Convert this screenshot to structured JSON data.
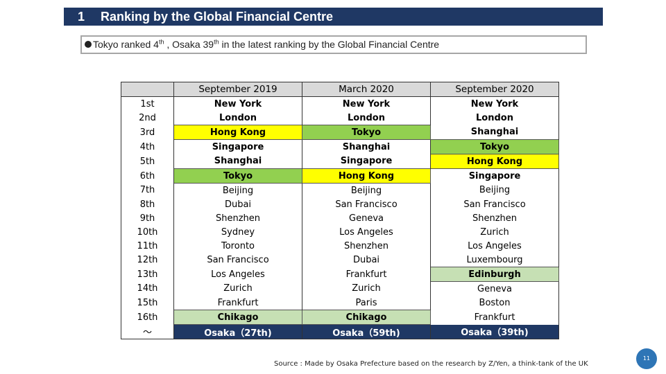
{
  "header": {
    "number": "1",
    "title": "Ranking by the Global Financial Centre"
  },
  "subtitle": {
    "parts": [
      "Tokyo ranked  4",
      "th",
      " , Osaka 39",
      "th",
      " in the latest ranking by the Global Financial Centre"
    ]
  },
  "table": {
    "columns": [
      "",
      "September 2019",
      "March 2020",
      "September 2020"
    ],
    "rows": [
      [
        "1st",
        "New York",
        "New York",
        "New York"
      ],
      [
        "2nd",
        "London",
        "London",
        "London"
      ],
      [
        "3rd",
        "Hong Kong",
        "Tokyo",
        "Shanghai"
      ],
      [
        "4th",
        "Singapore",
        "Shanghai",
        "Tokyo"
      ],
      [
        "5th",
        "Shanghai",
        "Singapore",
        "Hong Kong"
      ],
      [
        "6th",
        "Tokyo",
        "Hong Kong",
        "Singapore"
      ],
      [
        "7th",
        "Beijing",
        "Beijing",
        "Beijing"
      ],
      [
        "8th",
        "Dubai",
        "San Francisco",
        "San Francisco"
      ],
      [
        "9th",
        "Shenzhen",
        "Geneva",
        "Shenzhen"
      ],
      [
        "10th",
        "Sydney",
        "Los Angeles",
        "Zurich"
      ],
      [
        "11th",
        "Toronto",
        "Shenzhen",
        "Los Angeles"
      ],
      [
        "12th",
        "San Francisco",
        "Dubai",
        "Luxembourg"
      ],
      [
        "13th",
        "Los Angeles",
        "Frankfurt",
        "Edinburgh"
      ],
      [
        "14th",
        "Zurich",
        "Zurich",
        "Geneva"
      ],
      [
        "15th",
        "Frankfurt",
        "Paris",
        "Boston"
      ],
      [
        "16th",
        "Chikago",
        "Chikago",
        "Frankfurt"
      ],
      [
        "～",
        "Osaka（27th)",
        "Osaka（59th)",
        "Osaka（39th)"
      ]
    ]
  },
  "source": "Source : Made by Osaka Prefecture based on the research by Z/Yen, a think-tank of the UK",
  "page_number": "11"
}
